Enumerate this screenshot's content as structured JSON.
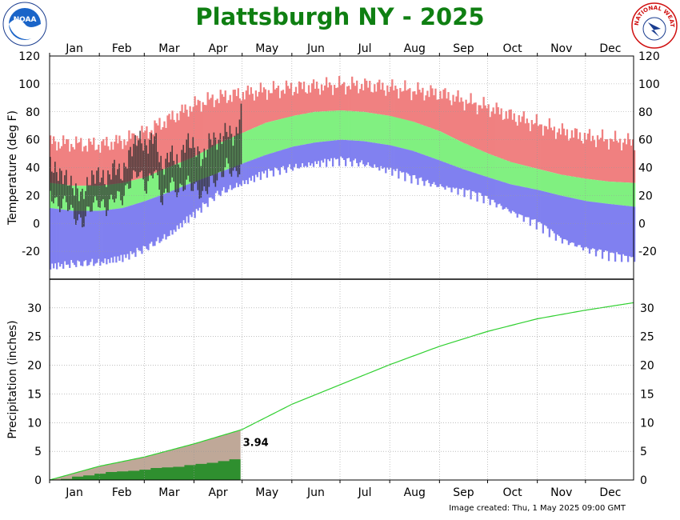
{
  "title": "Plattsburgh NY - 2025",
  "footer": "Image created: Thu, 1 May 2025 09:00 GMT",
  "logos": {
    "left": "NOAA",
    "right": "NATIONAL WEATHER SERVICE"
  },
  "colors": {
    "record_band": "#f08080",
    "normal_band": "#80f080",
    "low_band": "#8080f0",
    "observed_bar": "#303030",
    "precip_normal_line": "#30d030",
    "precip_normal_fill": "#bfa898",
    "precip_observed_fill": "#2f8f2f",
    "title": "#0f7f12"
  },
  "chart_data": [
    {
      "type": "bar",
      "panel": "temperature",
      "ylabel": "Temperature (deg F)",
      "ylim": [
        -40,
        120
      ],
      "yticks": [
        -20,
        0,
        20,
        40,
        60,
        80,
        100,
        120
      ],
      "months": [
        "Jan",
        "Feb",
        "Mar",
        "Apr",
        "May",
        "Jun",
        "Jul",
        "Aug",
        "Sep",
        "Oct",
        "Nov",
        "Dec"
      ],
      "grid": true,
      "series": [
        {
          "x": [
            1,
            15,
            32,
            46,
            60,
            74,
            91,
            105,
            121,
            135,
            152,
            166,
            182,
            196,
            213,
            227,
            244,
            258,
            274,
            288,
            305,
            319,
            335,
            349,
            365
          ],
          "values": [
            29,
            27,
            27,
            29,
            33,
            40,
            48,
            57,
            65,
            72,
            77,
            80,
            81,
            80,
            77,
            73,
            66,
            58,
            50,
            44,
            39,
            35,
            32,
            30,
            29
          ]
        },
        {
          "x": [
            1,
            15,
            32,
            46,
            60,
            74,
            91,
            105,
            121,
            135,
            152,
            166,
            182,
            196,
            213,
            227,
            244,
            258,
            274,
            288,
            305,
            319,
            335,
            349,
            365
          ],
          "values": [
            11,
            9,
            9,
            11,
            16,
            22,
            30,
            36,
            43,
            49,
            55,
            58,
            60,
            59,
            56,
            52,
            45,
            39,
            33,
            28,
            24,
            20,
            16,
            14,
            12
          ]
        },
        {
          "x": [
            1,
            15,
            32,
            46,
            60,
            74,
            91,
            105,
            121,
            135,
            152,
            166,
            182,
            196,
            213,
            227,
            244,
            258,
            274,
            288,
            305,
            319,
            335,
            349,
            365
          ],
          "values": [
            58,
            57,
            56,
            59,
            65,
            74,
            85,
            90,
            93,
            95,
            97,
            98,
            99,
            99,
            97,
            95,
            93,
            88,
            83,
            77,
            71,
            66,
            62,
            60,
            58
          ]
        },
        {
          "x": [
            1,
            15,
            32,
            46,
            60,
            74,
            91,
            105,
            121,
            135,
            152,
            166,
            182,
            196,
            213,
            227,
            244,
            258,
            274,
            288,
            305,
            319,
            335,
            349,
            365
          ],
          "values": [
            -28,
            -26,
            -25,
            -22,
            -15,
            -6,
            10,
            24,
            32,
            39,
            43,
            46,
            48,
            46,
            41,
            35,
            30,
            26,
            20,
            12,
            2,
            -8,
            -15,
            -20,
            -22
          ]
        },
        {
          "x": [
            1,
            6,
            11,
            16,
            21,
            26,
            31,
            36,
            41,
            46,
            51,
            56,
            61,
            66,
            71,
            76,
            81,
            86,
            91,
            96,
            101,
            106,
            111,
            116,
            120
          ],
          "high": [
            42,
            36,
            33,
            25,
            20,
            32,
            36,
            30,
            42,
            34,
            52,
            62,
            54,
            64,
            38,
            52,
            42,
            60,
            55,
            45,
            62,
            58,
            68,
            60,
            80
          ],
          "low": [
            22,
            12,
            16,
            5,
            0,
            12,
            16,
            10,
            20,
            18,
            30,
            38,
            25,
            40,
            15,
            30,
            22,
            30,
            26,
            20,
            30,
            32,
            42,
            35,
            40
          ]
        }
      ]
    },
    {
      "type": "area",
      "panel": "precipitation",
      "ylabel": "Precipitation (inches)",
      "ylim": [
        0,
        35
      ],
      "yticks": [
        0,
        5,
        10,
        15,
        20,
        25,
        30
      ],
      "months": [
        "Jan",
        "Feb",
        "Mar",
        "Apr",
        "May",
        "Jun",
        "Jul",
        "Aug",
        "Sep",
        "Oct",
        "Nov",
        "Dec"
      ],
      "grid": true,
      "annotation": "3.94",
      "series": [
        {
          "x": [
            1,
            32,
            60,
            91,
            121,
            152,
            182,
            213,
            244,
            274,
            305,
            335,
            365
          ],
          "values": [
            0,
            2.4,
            4.0,
            6.3,
            8.8,
            13.2,
            16.6,
            20.1,
            23.3,
            25.9,
            28.1,
            29.6,
            30.9
          ]
        },
        {
          "x": [
            1,
            8,
            15,
            22,
            29,
            36,
            43,
            50,
            57,
            64,
            71,
            78,
            85,
            92,
            99,
            106,
            113,
            120
          ],
          "values": [
            0,
            0.2,
            0.6,
            0.8,
            1.1,
            1.4,
            1.5,
            1.6,
            1.8,
            2.1,
            2.2,
            2.3,
            2.6,
            2.8,
            3.0,
            3.3,
            3.6,
            3.94
          ]
        }
      ]
    }
  ]
}
